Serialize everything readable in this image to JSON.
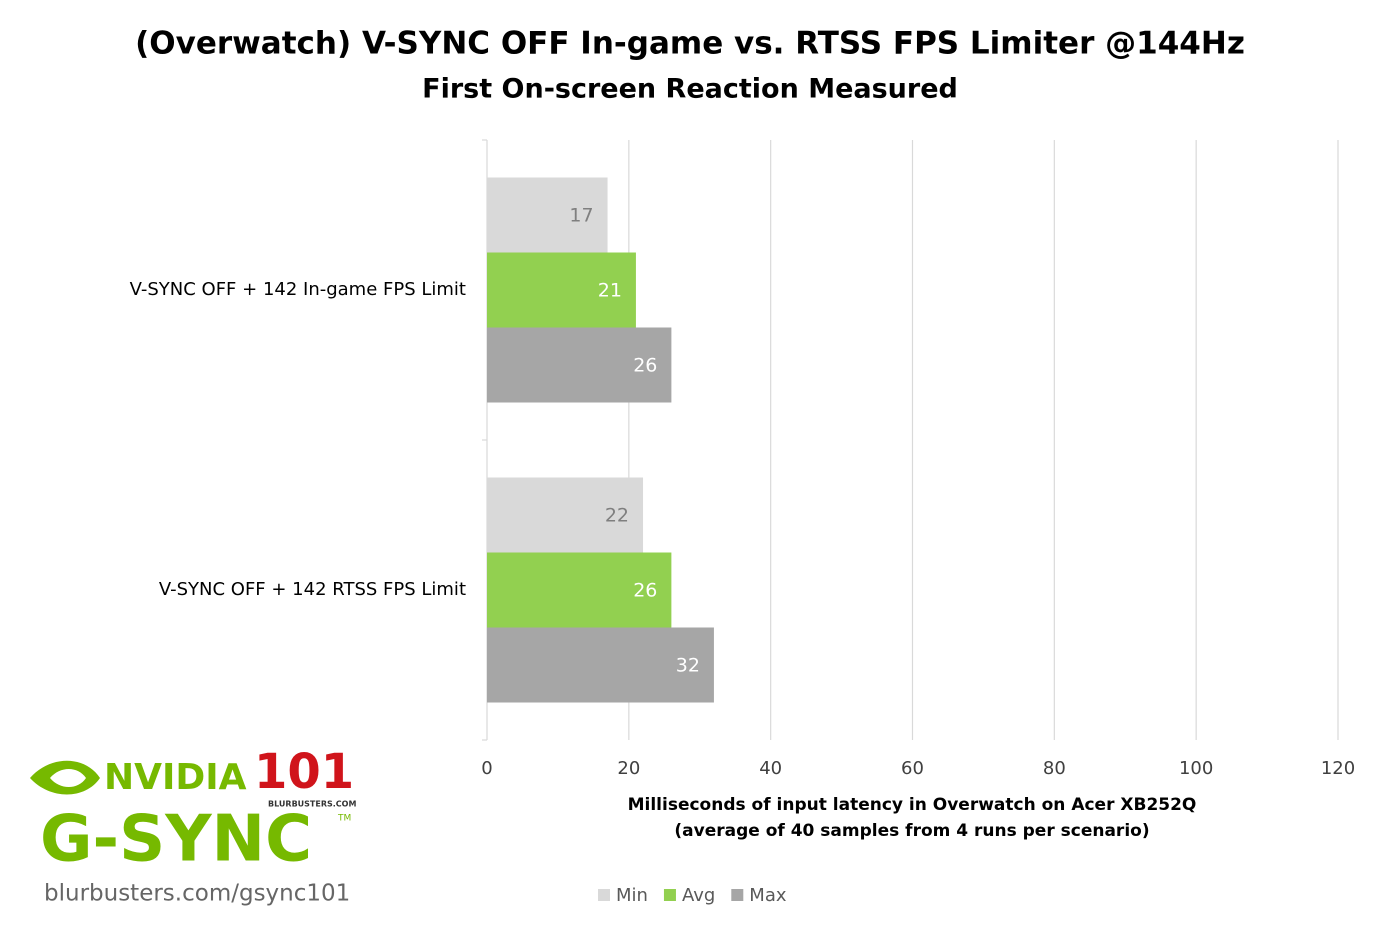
{
  "chart_data": {
    "type": "barh",
    "title": "(Overwatch) V-SYNC OFF In-game vs. RTSS FPS Limiter @144Hz",
    "subtitle": "First On-screen Reaction Measured",
    "x_label": "Milliseconds of input latency in Overwatch on Acer XB252Q",
    "x_label_note": "(average of 40 samples from 4 runs per scenario)",
    "categories": [
      "V-SYNC OFF + 142 In-game FPS Limit",
      "V-SYNC OFF + 142 RTSS FPS Limit"
    ],
    "series": [
      {
        "name": "Min",
        "color": "#d9d9d9",
        "values": [
          17,
          22
        ]
      },
      {
        "name": "Avg",
        "color": "#92d050",
        "values": [
          21,
          26
        ]
      },
      {
        "name": "Max",
        "color": "#a6a6a6",
        "values": [
          26,
          32
        ]
      }
    ],
    "xlim": [
      0,
      120
    ],
    "xticks": [
      0,
      20,
      40,
      60,
      80,
      100,
      120
    ],
    "grid": true,
    "legend": "bottom"
  },
  "logo": {
    "brand": "NVIDIA",
    "number": "101",
    "site": "BLURBUSTERS.COM",
    "product": "G-SYNC",
    "trademark": "TM",
    "url": "blurbusters.com/gsync101"
  }
}
